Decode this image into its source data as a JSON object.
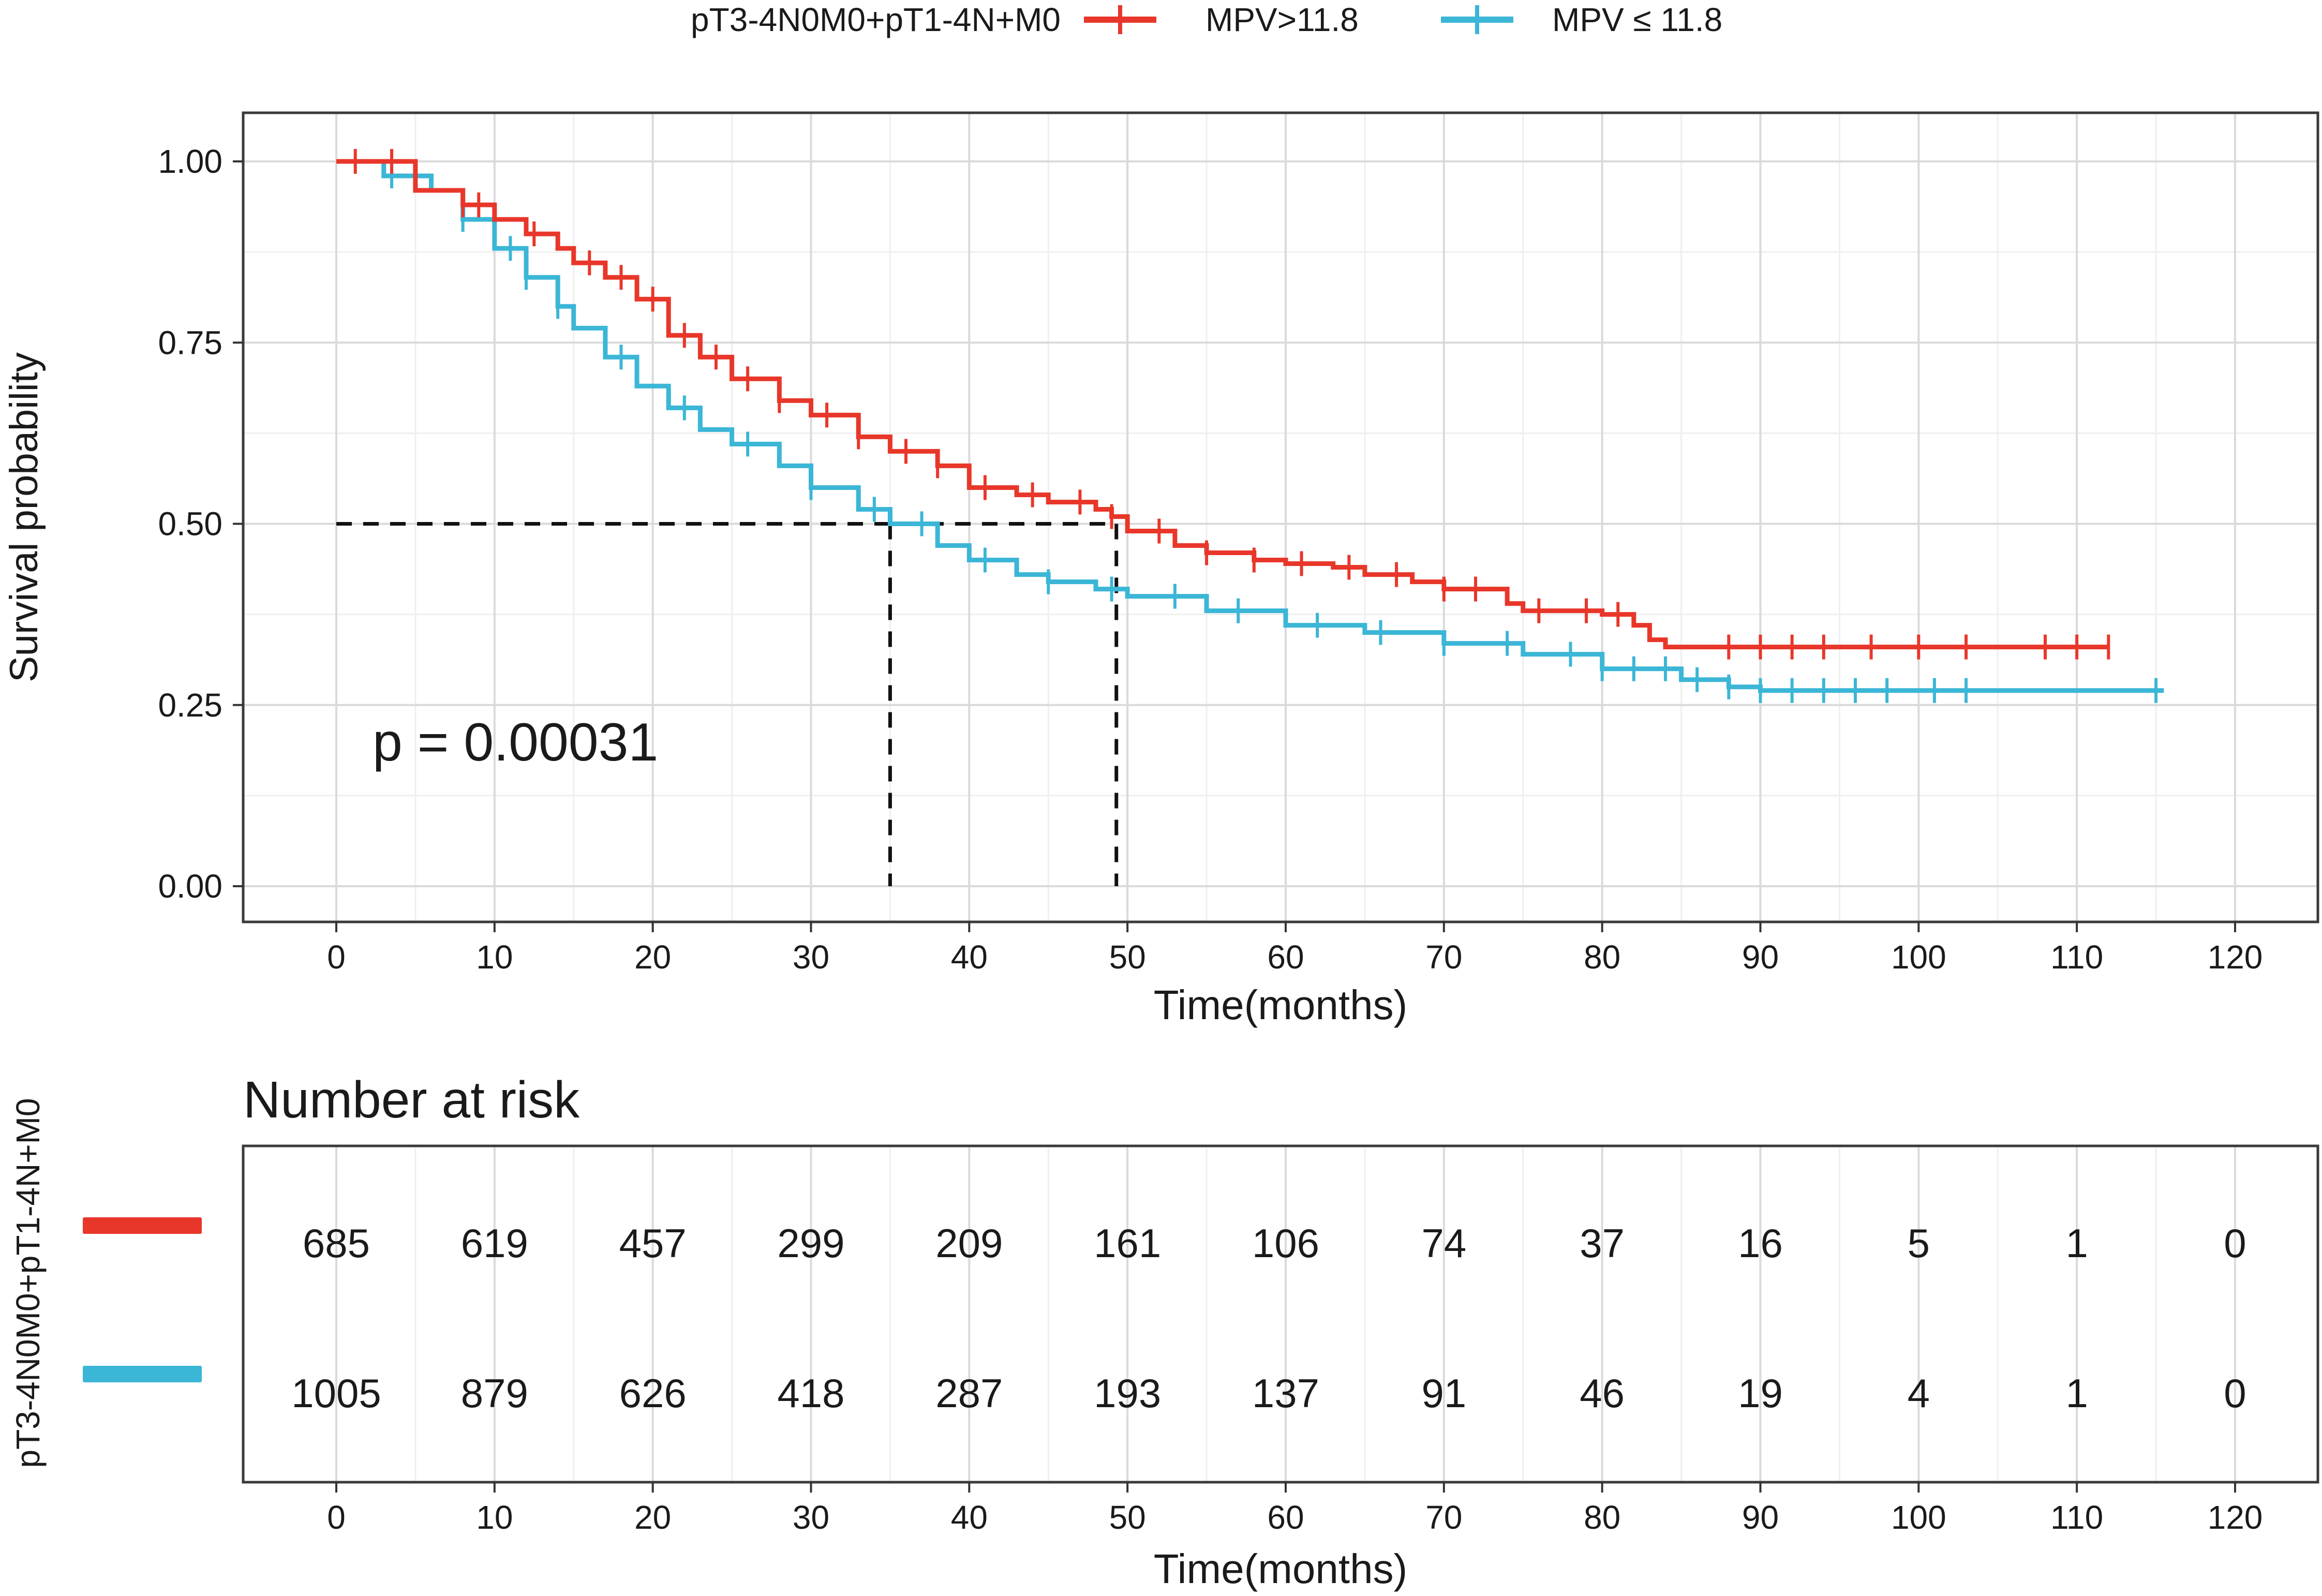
{
  "colors": {
    "high": "#E8372A",
    "low": "#3BB6D6",
    "grid_major": "#DADADA",
    "grid_minor": "#EFEFEF",
    "panel_border": "#3A3A3A",
    "ref_line": "#111111"
  },
  "legend": {
    "title": "pT3-4N0M0+pT1-4N+M0",
    "items": [
      {
        "label": "MPV>11.8",
        "color": "#E8372A"
      },
      {
        "label": "MPV ≤ 11.8",
        "color": "#3BB6D6"
      }
    ]
  },
  "pvalue_text": "p = 0.00031",
  "risk_table": {
    "title": "Number at risk",
    "strata_label": "pT3-4N0M0+pT1-4N+M0",
    "times": [
      0,
      10,
      20,
      30,
      40,
      50,
      60,
      70,
      80,
      90,
      100,
      110,
      120
    ],
    "rows": [
      {
        "name": "MPV>11.8",
        "color": "#E8372A",
        "counts": [
          "685",
          "619",
          "457",
          "299",
          "209",
          "161",
          "106",
          "74",
          "37",
          "16",
          "5",
          "1",
          "0"
        ]
      },
      {
        "name": "MPV ≤ 11.8",
        "color": "#3BB6D6",
        "counts": [
          "1005",
          "879",
          "626",
          "418",
          "287",
          "193",
          "137",
          "91",
          "46",
          "19",
          "4",
          "1",
          "0"
        ]
      }
    ],
    "xlabel": "Time(months)"
  },
  "chart_data": {
    "type": "line",
    "title": "",
    "xlabel": "Time(months)",
    "ylabel": "Survival probability",
    "xlim": [
      0,
      120
    ],
    "ylim": [
      0,
      1
    ],
    "x_ticks": [
      0,
      10,
      20,
      30,
      40,
      50,
      60,
      70,
      80,
      90,
      100,
      110,
      120
    ],
    "y_ticks": [
      0,
      0.25,
      0.5,
      0.75,
      1
    ],
    "y_tick_labels": [
      "0.00",
      "0.25",
      "0.50",
      "0.75",
      "1.00"
    ],
    "median_survival": {
      "MPV>11.8": 49.3,
      "MPV ≤ 11.8": 35.0
    },
    "series": [
      {
        "name": "MPV>11.8",
        "color": "#E8372A",
        "x": [
          0,
          5,
          8,
          10,
          12,
          14,
          15,
          17,
          19,
          21,
          23,
          25,
          28,
          30,
          33,
          35,
          38,
          40,
          43,
          45,
          48,
          49,
          50,
          53,
          55,
          58,
          60,
          63,
          65,
          68,
          70,
          72,
          73,
          74,
          75,
          80,
          82,
          83,
          84,
          112
        ],
        "y": [
          1,
          0.96,
          0.94,
          0.92,
          0.9,
          0.88,
          0.86,
          0.84,
          0.81,
          0.76,
          0.73,
          0.7,
          0.67,
          0.65,
          0.62,
          0.6,
          0.58,
          0.55,
          0.54,
          0.53,
          0.52,
          0.51,
          0.49,
          0.47,
          0.46,
          0.45,
          0.445,
          0.44,
          0.43,
          0.42,
          0.41,
          0.41,
          0.41,
          0.39,
          0.38,
          0.375,
          0.36,
          0.34,
          0.33,
          0.33
        ],
        "censor_x": [
          1.2,
          3.5,
          8,
          9,
          12.5,
          16,
          18,
          20,
          22,
          24,
          26,
          28,
          31,
          33,
          36,
          38,
          41,
          44,
          47,
          49,
          52,
          55,
          58,
          61,
          64,
          67,
          70,
          72,
          76,
          79,
          81,
          88,
          90,
          92,
          94,
          97,
          100,
          103,
          108,
          110,
          112
        ]
      },
      {
        "name": "MPV ≤ 11.8",
        "color": "#3BB6D6",
        "x": [
          0,
          3,
          6,
          8,
          10,
          12,
          14,
          15,
          17,
          19,
          21,
          23,
          25,
          28,
          30,
          33,
          35,
          38,
          40,
          43,
          45,
          48,
          50,
          55,
          60,
          65,
          70,
          75,
          80,
          85,
          88,
          90,
          115.5
        ],
        "y": [
          1,
          0.98,
          0.96,
          0.92,
          0.88,
          0.84,
          0.8,
          0.77,
          0.73,
          0.69,
          0.66,
          0.63,
          0.61,
          0.58,
          0.55,
          0.52,
          0.5,
          0.47,
          0.45,
          0.43,
          0.42,
          0.41,
          0.4,
          0.38,
          0.36,
          0.35,
          0.335,
          0.32,
          0.3,
          0.285,
          0.275,
          0.27,
          0.27
        ],
        "censor_x": [
          3.5,
          8,
          11,
          12,
          14,
          18,
          22,
          26,
          30,
          34,
          37,
          41,
          45,
          49,
          53,
          57,
          62,
          66,
          70,
          74,
          78,
          80,
          82,
          84,
          86,
          88,
          90,
          92,
          94,
          96,
          98,
          101,
          103,
          115
        ]
      }
    ]
  }
}
